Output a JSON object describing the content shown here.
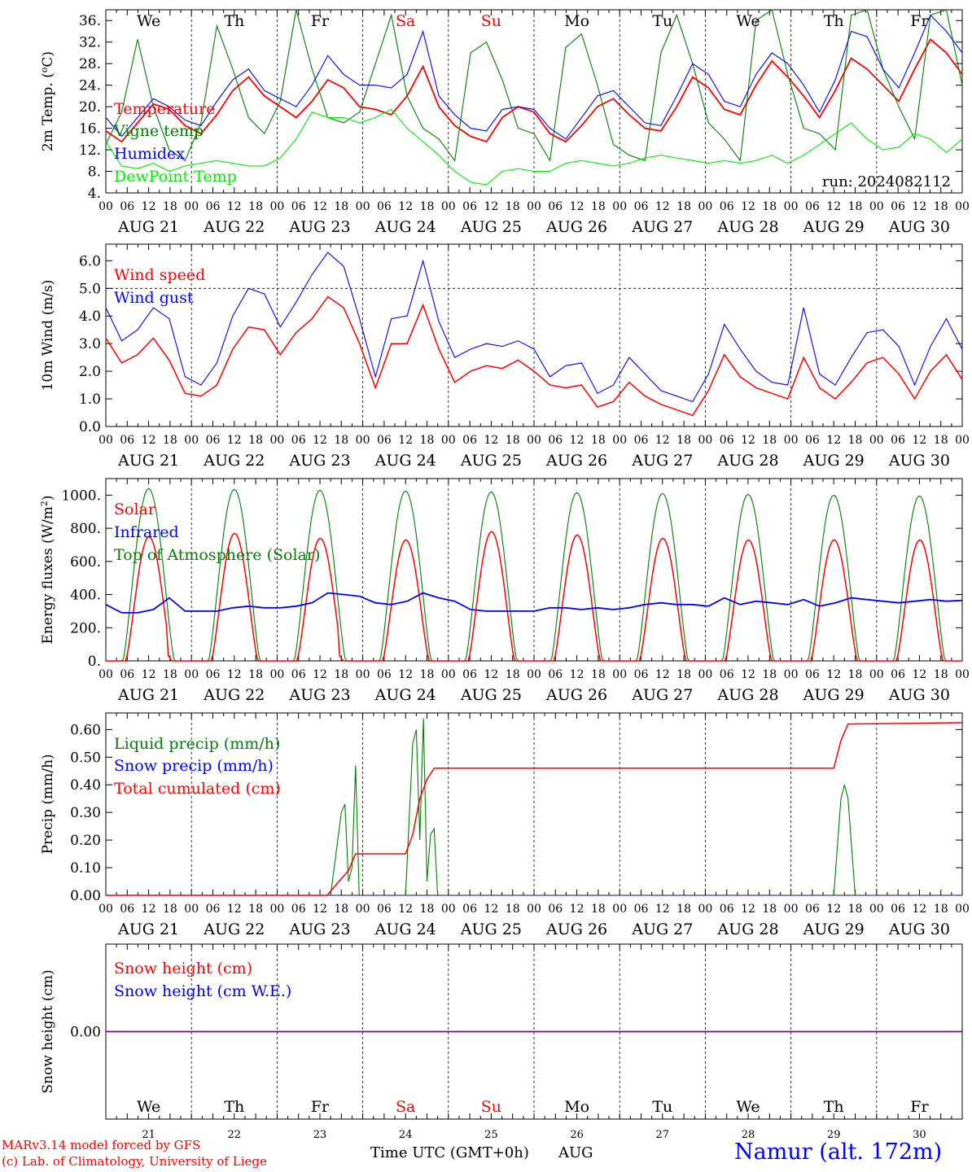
{
  "colors": {
    "temperature": "#ff0000",
    "vigne": "#008000",
    "humidex": "#0000ff",
    "dewpoint": "#00ee00",
    "weekend": "#ff0000",
    "weekday": "#000000",
    "snow_line": "#800080"
  },
  "axis": {
    "hour_ticks": [
      "00",
      "06",
      "12",
      "18"
    ],
    "day_labels": [
      "AUG 21",
      "AUG 22",
      "AUG 23",
      "AUG 24",
      "AUG 25",
      "AUG 26",
      "AUG 27",
      "AUG 28",
      "AUG 29",
      "AUG 30"
    ],
    "weekdays": [
      "We",
      "Th",
      "Fr",
      "Sa",
      "Su",
      "Mo",
      "Tu",
      "We",
      "Th",
      "Fr"
    ],
    "weekend_flags": [
      false,
      false,
      false,
      true,
      true,
      false,
      false,
      false,
      false,
      false
    ],
    "day_numbers": [
      "21",
      "22",
      "23",
      "24",
      "25",
      "26",
      "27",
      "28",
      "29",
      "30"
    ],
    "x_range_hours": [
      0,
      240
    ]
  },
  "footer": {
    "model": "MARv3.14 model forced by GFS",
    "lab": "(c) Lab. of Climatology, University of Liege",
    "xlabel": "Time UTC (GMT+0h)",
    "month": "AUG",
    "station": "Namur (alt. 172m)"
  },
  "chart_data": [
    {
      "type": "line",
      "ylabel_parts": [
        "2m Temp. (",
        "o",
        "C)"
      ],
      "ylim": [
        4,
        38
      ],
      "yticks": [
        4,
        8,
        12,
        16,
        20,
        24,
        28,
        32,
        36
      ],
      "ytick_labels": [
        "4.",
        "8.",
        "12.",
        "16.",
        "20.",
        "24.",
        "28.",
        "32.",
        "36."
      ],
      "run_label": "run: 2024082112",
      "series": [
        {
          "name": "Temperature",
          "color_key": "temperature",
          "width": 1.8,
          "values": [
            15.5,
            13.5,
            17,
            20.5,
            19.5,
            16.5,
            15,
            18.5,
            23,
            25.5,
            22,
            20,
            18,
            21,
            25,
            23.5,
            20,
            19.5,
            18.5,
            22,
            27.5,
            20,
            16.5,
            14.5,
            13.5,
            18,
            20,
            19,
            15,
            13.5,
            16.5,
            20,
            21.5,
            18.5,
            16,
            15.5,
            20,
            25.5,
            23.5,
            19.5,
            18.5,
            24,
            28.5,
            25.5,
            22,
            18,
            23,
            29,
            27,
            24,
            21,
            27,
            32.5,
            30,
            26
          ]
        },
        {
          "name": "Vigne temp",
          "color_key": "vigne",
          "width": 1.1,
          "values": [
            13,
            19,
            32.5,
            20,
            12,
            10,
            17,
            35,
            27,
            18,
            15,
            21,
            38,
            27,
            18,
            17,
            19,
            28,
            37,
            22,
            16,
            14,
            10,
            30,
            32,
            25,
            16,
            15,
            10,
            31,
            33.5,
            24,
            13,
            11,
            10,
            30,
            37,
            28,
            17,
            14,
            10,
            36,
            38,
            26,
            16,
            15,
            12,
            37,
            38,
            27,
            20,
            14,
            37,
            38,
            24
          ]
        },
        {
          "name": "Humidex",
          "color_key": "humidex",
          "width": 1.1,
          "values": [
            18,
            14.5,
            18,
            21.5,
            20,
            17.5,
            16.5,
            21,
            25,
            27,
            23,
            21.5,
            20,
            24,
            29.5,
            26,
            24,
            24,
            23.5,
            26,
            34,
            22,
            18.5,
            16,
            15.5,
            19.5,
            20,
            19.5,
            16,
            14,
            18,
            22,
            23,
            20,
            17,
            16.5,
            22,
            28,
            26,
            21,
            20,
            26,
            30,
            28,
            24,
            19,
            25,
            34,
            33,
            27,
            23.5,
            30,
            37,
            34,
            30
          ]
        },
        {
          "name": "DewPoint Temp",
          "color_key": "dewpoint",
          "width": 1.1,
          "values": [
            13.5,
            9,
            8.5,
            9.5,
            8,
            9,
            9.5,
            10,
            9.5,
            9,
            9,
            10.5,
            14,
            19,
            18,
            18,
            17,
            18,
            19.5,
            16,
            13.5,
            11,
            8,
            6,
            5.5,
            8,
            8.5,
            8,
            8,
            9.5,
            10,
            9.5,
            9,
            9.5,
            10.5,
            11,
            10.5,
            10,
            9.5,
            10,
            9.5,
            10,
            11,
            9.5,
            11,
            13,
            15,
            17,
            14,
            12,
            12.5,
            15,
            14,
            11.5,
            14
          ]
        }
      ]
    },
    {
      "type": "line",
      "ylabel": "10m Wind (m/s)",
      "ylim": [
        0,
        6.6
      ],
      "yticks": [
        0,
        1,
        2,
        3,
        4,
        5,
        6
      ],
      "ytick_labels": [
        "0.0",
        "1.0",
        "2.0",
        "3.0",
        "4.0",
        "5.0",
        "6.0"
      ],
      "hline": 5.0,
      "series": [
        {
          "name": "Wind speed",
          "color_key": "temperature",
          "width": 1.5,
          "values": [
            3.2,
            2.3,
            2.6,
            3.2,
            2.4,
            1.2,
            1.1,
            1.5,
            2.8,
            3.6,
            3.5,
            2.6,
            3.4,
            3.9,
            4.7,
            4.3,
            3.0,
            1.4,
            3.0,
            3.0,
            4.4,
            2.8,
            1.6,
            2.0,
            2.2,
            2.1,
            2.4,
            2.0,
            1.5,
            1.4,
            1.5,
            0.7,
            0.9,
            1.6,
            1.1,
            0.8,
            0.6,
            0.4,
            1.3,
            2.6,
            1.8,
            1.4,
            1.2,
            1.0,
            2.5,
            1.4,
            1.0,
            1.6,
            2.3,
            2.5,
            1.9,
            1.0,
            2.0,
            2.6,
            1.7
          ]
        },
        {
          "name": "Wind gust",
          "color_key": "humidex",
          "width": 1.1,
          "values": [
            4.3,
            3.1,
            3.5,
            4.3,
            3.9,
            1.8,
            1.5,
            2.3,
            4.0,
            5.0,
            4.8,
            3.6,
            4.5,
            5.5,
            6.3,
            5.8,
            3.9,
            1.8,
            3.9,
            4.0,
            6.0,
            3.8,
            2.5,
            2.8,
            3.0,
            2.9,
            3.1,
            2.8,
            1.8,
            2.2,
            2.3,
            1.2,
            1.5,
            2.5,
            1.9,
            1.3,
            1.1,
            0.9,
            1.9,
            3.7,
            2.8,
            2.0,
            1.6,
            1.5,
            4.3,
            1.9,
            1.5,
            2.5,
            3.4,
            3.5,
            2.9,
            1.5,
            2.9,
            3.9,
            2.8
          ]
        }
      ]
    },
    {
      "type": "line",
      "ylabel_parts": [
        "Energy fluxes (W/m",
        "2",
        ")"
      ],
      "ylim": [
        0,
        1100
      ],
      "yticks": [
        0,
        200,
        400,
        600,
        800,
        1000
      ],
      "ytick_labels": [
        "0.",
        "200.",
        "400.",
        "600.",
        "800.",
        "1000."
      ],
      "series": [
        {
          "name": "Solar",
          "color_key": "temperature",
          "width": 1.5,
          "peaks": [
            750,
            770,
            740,
            730,
            780,
            760,
            740,
            730,
            730,
            730
          ],
          "cutoffs": [
            17,
            null,
            17,
            null,
            null,
            null,
            null,
            null,
            null,
            null
          ]
        },
        {
          "name": "Infrared",
          "color_key": "humidex",
          "width": 1.8,
          "values": [
            340,
            290,
            290,
            310,
            380,
            300,
            300,
            300,
            320,
            330,
            320,
            320,
            330,
            350,
            410,
            400,
            390,
            350,
            340,
            360,
            410,
            380,
            360,
            310,
            300,
            300,
            300,
            300,
            320,
            320,
            310,
            320,
            310,
            320,
            340,
            350,
            340,
            340,
            330,
            380,
            340,
            360,
            350,
            340,
            370,
            330,
            350,
            380,
            370,
            360,
            350,
            360,
            370,
            360,
            365
          ]
        },
        {
          "name": "Top of Atmosphere (Solar)",
          "color_key": "vigne",
          "width": 1.1,
          "peaks": [
            1040,
            1035,
            1030,
            1025,
            1020,
            1015,
            1010,
            1005,
            1000,
            995
          ]
        }
      ]
    },
    {
      "type": "line",
      "ylabel": "Precip (mm/h)",
      "ylim": [
        0,
        0.66
      ],
      "yticks": [
        0,
        0.1,
        0.2,
        0.3,
        0.4,
        0.5,
        0.6
      ],
      "ytick_labels": [
        "0.00",
        "0.10",
        "0.20",
        "0.30",
        "0.40",
        "0.50",
        "0.60"
      ],
      "series": [
        {
          "name": "Liquid precip (mm/h)",
          "color_key": "vigne",
          "width": 1.1,
          "points": [
            [
              0,
              0
            ],
            [
              63,
              0
            ],
            [
              66,
              0.3
            ],
            [
              67,
              0.33
            ],
            [
              68,
              0.05
            ],
            [
              69,
              0.1
            ],
            [
              70,
              0.47
            ],
            [
              71,
              0
            ],
            [
              84,
              0
            ],
            [
              86,
              0.55
            ],
            [
              87,
              0.6
            ],
            [
              88,
              0.2
            ],
            [
              89,
              0.64
            ],
            [
              90,
              0.05
            ],
            [
              91,
              0.22
            ],
            [
              92,
              0.24
            ],
            [
              93,
              0
            ],
            [
              204,
              0
            ],
            [
              206,
              0.35
            ],
            [
              207,
              0.4
            ],
            [
              208,
              0.35
            ],
            [
              210,
              0
            ],
            [
              237,
              0
            ],
            [
              240,
              0
            ]
          ]
        },
        {
          "name": "Snow precip (mm/h)",
          "color_key": "humidex",
          "width": 1.1,
          "points": [
            [
              0,
              0
            ],
            [
              240,
              0
            ]
          ]
        },
        {
          "name": "Total cumulated (cm)",
          "color_key": "temperature",
          "width": 1.5,
          "points": [
            [
              0,
              0
            ],
            [
              62,
              0
            ],
            [
              66,
              0.06
            ],
            [
              68,
              0.09
            ],
            [
              70,
              0.15
            ],
            [
              84,
              0.15
            ],
            [
              86,
              0.22
            ],
            [
              88,
              0.35
            ],
            [
              90,
              0.42
            ],
            [
              92,
              0.46
            ],
            [
              204,
              0.46
            ],
            [
              206,
              0.56
            ],
            [
              208,
              0.62
            ],
            [
              240,
              0.625
            ]
          ]
        }
      ]
    },
    {
      "type": "line",
      "ylabel": "Snow height (cm)",
      "ylim": [
        0,
        1
      ],
      "yticks": [
        0.5
      ],
      "ytick_labels": [
        "0.00"
      ],
      "series": [
        {
          "name": "Snow height (cm)",
          "color_key": "temperature"
        },
        {
          "name": "Snow height (cm W.E.)",
          "color_key": "humidex"
        }
      ],
      "value": 0.0
    }
  ]
}
